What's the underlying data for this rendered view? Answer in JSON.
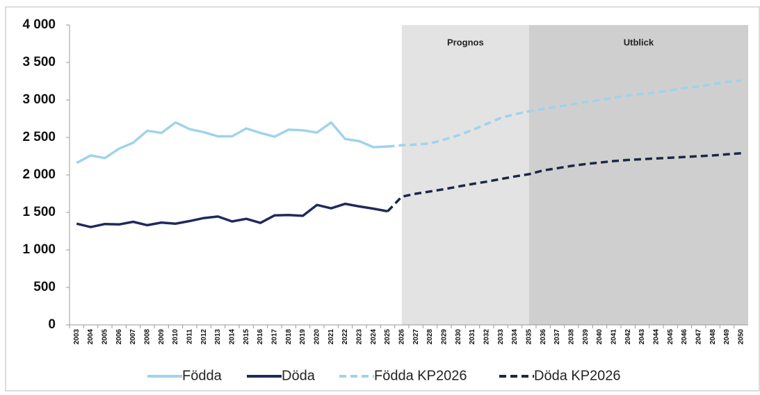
{
  "chart_data": {
    "type": "line",
    "categories": [
      "2003",
      "2004",
      "2005",
      "2006",
      "2007",
      "2008",
      "2009",
      "2010",
      "2011",
      "2012",
      "2013",
      "2014",
      "2015",
      "2016",
      "2017",
      "2018",
      "2019",
      "2020",
      "2021",
      "2022",
      "2023",
      "2024",
      "2025",
      "2026",
      "2027",
      "2028",
      "2029",
      "2030",
      "2031",
      "2032",
      "2033",
      "2034",
      "2035",
      "2036",
      "2037",
      "2038",
      "2039",
      "2040",
      "2041",
      "2042",
      "2043",
      "2044",
      "2045",
      "2046",
      "2047",
      "2048",
      "2049",
      "2050"
    ],
    "series": [
      {
        "name": "Födda",
        "color": "#9fd3ec",
        "dashed": false,
        "values": [
          2160,
          2260,
          2225,
          2350,
          2430,
          2590,
          2560,
          2700,
          2610,
          2570,
          2515,
          2515,
          2620,
          2560,
          2510,
          2605,
          2595,
          2565,
          2700,
          2480,
          2450,
          2370,
          2380,
          null,
          null,
          null,
          null,
          null,
          null,
          null,
          null,
          null,
          null,
          null,
          null,
          null,
          null,
          null,
          null,
          null,
          null,
          null,
          null,
          null,
          null,
          null,
          null,
          null
        ]
      },
      {
        "name": "Döda",
        "color": "#1f2a5c",
        "dashed": false,
        "values": [
          1350,
          1305,
          1345,
          1340,
          1375,
          1330,
          1365,
          1350,
          1385,
          1425,
          1445,
          1380,
          1415,
          1360,
          1460,
          1465,
          1455,
          1600,
          1555,
          1615,
          1580,
          1550,
          1515,
          null,
          null,
          null,
          null,
          null,
          null,
          null,
          null,
          null,
          null,
          null,
          null,
          null,
          null,
          null,
          null,
          null,
          null,
          null,
          null,
          null,
          null,
          null,
          null,
          null
        ]
      },
      {
        "name": "Födda KP2026",
        "color": "#9fd3ec",
        "dashed": true,
        "values": [
          null,
          null,
          null,
          null,
          null,
          null,
          null,
          null,
          null,
          null,
          null,
          null,
          null,
          null,
          null,
          null,
          null,
          null,
          null,
          null,
          null,
          null,
          2380,
          2395,
          2405,
          2420,
          2470,
          2530,
          2600,
          2680,
          2760,
          2810,
          2850,
          2880,
          2910,
          2940,
          2970,
          3000,
          3030,
          3060,
          3080,
          3100,
          3130,
          3160,
          3180,
          3210,
          3240,
          3260
        ]
      },
      {
        "name": "Döda KP2026",
        "color": "#1a2845",
        "dashed": true,
        "values": [
          null,
          null,
          null,
          null,
          null,
          null,
          null,
          null,
          null,
          null,
          null,
          null,
          null,
          null,
          null,
          null,
          null,
          null,
          null,
          null,
          null,
          null,
          1515,
          1710,
          1750,
          1780,
          1810,
          1845,
          1880,
          1910,
          1945,
          1980,
          2010,
          2060,
          2090,
          2120,
          2145,
          2165,
          2185,
          2200,
          2210,
          2220,
          2230,
          2240,
          2250,
          2260,
          2275,
          2290
        ]
      }
    ],
    "ylim": [
      0,
      4000
    ],
    "yticks": [
      0,
      500,
      {
        "value": 1000,
        "label": "1 000"
      },
      {
        "value": 1500,
        "label": "1 500"
      },
      {
        "value": 2000,
        "label": "2 000"
      },
      {
        "value": 2500,
        "label": "2 500"
      },
      {
        "value": 3000,
        "label": "3 000"
      },
      {
        "value": 3500,
        "label": "3 500"
      },
      {
        "value": 4000,
        "label": "4 000"
      }
    ],
    "grid": false,
    "shaded_regions": [
      {
        "label": "Prognos",
        "from": "2026",
        "color": "#e3e3e3"
      },
      {
        "label": "Utblick",
        "from": "2035",
        "color": "#cfcfcf"
      }
    ],
    "legend": "bottom"
  }
}
